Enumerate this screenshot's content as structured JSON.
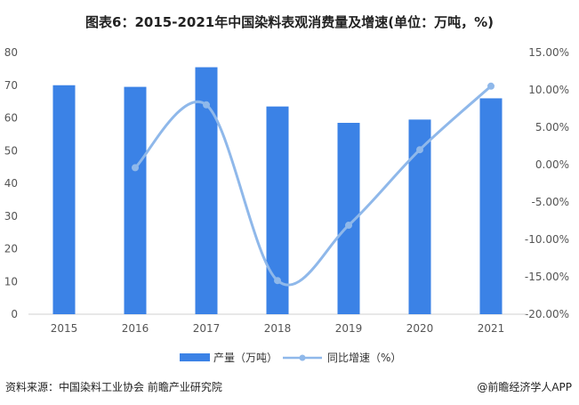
{
  "title": "图表6：2015-2021年中国染料表观消费量及增速(单位：万吨，%)",
  "source": "资料来源：中国染料工业协会 前瞻产业研究院",
  "app_credit": "@前瞻经济学人APP",
  "chart_data": {
    "type": "bar",
    "categories": [
      "2015",
      "2016",
      "2017",
      "2018",
      "2019",
      "2020",
      "2021"
    ],
    "series": [
      {
        "name": "产量（万吨）",
        "type": "bar",
        "axis": "left",
        "values": [
          70,
          69.5,
          75.5,
          63.5,
          58.5,
          59.5,
          66
        ]
      },
      {
        "name": "同比增速（%）",
        "type": "line",
        "axis": "right",
        "values": [
          null,
          -0.4,
          8.0,
          -15.5,
          -8.1,
          2.0,
          10.5
        ]
      }
    ],
    "ylim_left": [
      0,
      80
    ],
    "yticks_left": [
      "0",
      "10",
      "20",
      "30",
      "40",
      "50",
      "60",
      "70",
      "80"
    ],
    "ylim_right": [
      -20,
      15
    ],
    "yticks_right": [
      "-20.00%",
      "-15.00%",
      "-10.00%",
      "-5.00%",
      "0.00%",
      "5.00%",
      "10.00%",
      "15.00%"
    ],
    "colors": {
      "bar": "#3b82e6",
      "line": "#8fb8ea"
    },
    "legend_position": "bottom"
  }
}
